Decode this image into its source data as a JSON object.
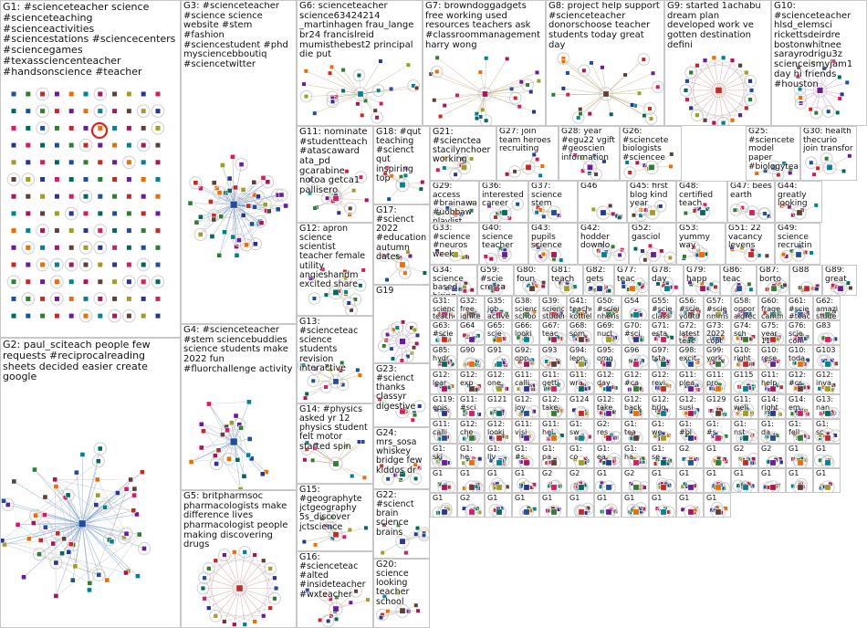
{
  "groups": [
    {
      "id": "G1",
      "label": "G1: #scienceteacher science #scienceteaching #scienceactivities #sciencestations #sciencecenters #sciencegames #texassciencenteacher #handsonscience #teacher"
    },
    {
      "id": "G2",
      "label": "G2: paul_sciteach people few requests #reciprocalreading sheets decided easier create google"
    },
    {
      "id": "G3",
      "label": "G3: #scienceteacher #science science website #stem #fashion #sciencestudent #phd mysciencebboutiq #sciencetwitter"
    },
    {
      "id": "G4",
      "label": "G4: #scienceteacher #stem sciencebuddies science students make 2022 fun #fluorchallenge activity"
    },
    {
      "id": "G5",
      "label": "G5: britpharmsoc pharmacologists make difference lives pharmacologist people making discovering drugs"
    },
    {
      "id": "G6",
      "label": "G6: scienceteacher science63424214 _martinhagen frau_lange br24 francislreid mumisthebest2 principal die put"
    },
    {
      "id": "G7",
      "label": "G7: browndoggadgets free working used resources teachers ask #classroommanagement harry wong"
    },
    {
      "id": "G8",
      "label": "G8: project help support #scienceteacher donorschoose teacher students today great day"
    },
    {
      "id": "G9",
      "label": "G9: started 1achabu dream plan developed work ve gotten destination defini"
    },
    {
      "id": "G10",
      "label": "G10: #scienceteacher hlsd_elemsci rickettsdeirdre bostonwhitnee sarayrodrigu3z scienceismyjam1 day hi friends #houston"
    },
    {
      "id": "G11",
      "label": "G11: nominate #studentteach #atascaward ata_pd gcarabine notoa getca1 pallisero"
    },
    {
      "id": "G12",
      "label": "G12: apron science scientist teacher female utility angieshandm excited share"
    },
    {
      "id": "G13",
      "label": "G13: #scienceteac science students revision interactive"
    },
    {
      "id": "G14",
      "label": "G14: #physics asked yr 12 physics student felt motor started spin"
    },
    {
      "id": "G15",
      "label": "G15: #geographyte jctgeography 5s_discover jctscience"
    },
    {
      "id": "G16",
      "label": "G16: #scienceteac #alted #insideteacher #wxteacher"
    },
    {
      "id": "G17",
      "label": "G17: #scienct 2022 #education autumn dates"
    },
    {
      "id": "G18",
      "label": "G18: #qut teaching #scienct qut inspiring top"
    },
    {
      "id": "G19",
      "label": "G19"
    },
    {
      "id": "G20",
      "label": "G20: science looking teacher school"
    },
    {
      "id": "G21",
      "label": "G21: #scienctea stacilynchoer working"
    },
    {
      "id": "G22",
      "label": "G22: #scienct brain science brains"
    },
    {
      "id": "G23",
      "label": "G23: #scienct thanks classyr digestive"
    },
    {
      "id": "G24",
      "label": "G24: mrs_sosa whiskey bridge few kiddos dr"
    },
    {
      "id": "G25",
      "label": "G25: #sciencete model paper #biologytea"
    },
    {
      "id": "G26",
      "label": "G26: #sciencete biologists #sciencee"
    },
    {
      "id": "G27",
      "label": "G27: join team heroes recruiting"
    },
    {
      "id": "G28",
      "label": "G28: year #egu22 vgift #geoscien information"
    },
    {
      "id": "G29",
      "label": "G29: access #brainawar #uobbaw playlist"
    },
    {
      "id": "G30",
      "label": "G30: health thecurio join transfor"
    },
    {
      "id": "G31",
      "label": "G31: science teacher burns"
    },
    {
      "id": "G32",
      "label": "G32: free ignite teaching data"
    },
    {
      "id": "G33",
      "label": "G33: #science #neuros week"
    },
    {
      "id": "G34",
      "label": "G34: science based hiring"
    },
    {
      "id": "G35",
      "label": "G35: job active teaching credent"
    },
    {
      "id": "G36",
      "label": "G36: interested career"
    },
    {
      "id": "G37",
      "label": "G37: science stem"
    },
    {
      "id": "G38",
      "label": "G38: science school"
    },
    {
      "id": "G39",
      "label": "G39: science students"
    },
    {
      "id": "G40",
      "label": "G40: science teacher"
    },
    {
      "id": "G41",
      "label": "G41: teachers kottieb"
    },
    {
      "id": "G42",
      "label": "G42: hodder downlo"
    },
    {
      "id": "G43",
      "label": "G43: pupils science"
    },
    {
      "id": "G44",
      "label": "G44: greatly looking"
    },
    {
      "id": "G45",
      "label": "G45: first blog kind year"
    },
    {
      "id": "G46",
      "label": "G46"
    },
    {
      "id": "G47",
      "label": "G47: bees earth"
    },
    {
      "id": "G48",
      "label": "G48: certified teach"
    },
    {
      "id": "G49",
      "label": "G49: science recruitin"
    },
    {
      "id": "G50",
      "label": "G50: #scien nheris"
    },
    {
      "id": "G51",
      "label": "G51: 22 vacancy levens"
    },
    {
      "id": "G52",
      "label": "G52: gasciol"
    },
    {
      "id": "G53",
      "label": "G53: yummy way"
    },
    {
      "id": "G54",
      "label": "G54"
    },
    {
      "id": "G55",
      "label": "G55: #scie class"
    },
    {
      "id": "G56",
      "label": "G56: #scie youtu"
    },
    {
      "id": "G57",
      "label": "G57: #scie nmms"
    },
    {
      "id": "G58",
      "label": "G58: oppor aigrec"
    },
    {
      "id": "G59",
      "label": "G59: #scie cresta"
    },
    {
      "id": "G60",
      "label": "G60: frage camm"
    },
    {
      "id": "G61",
      "label": "G61: #scie #teac"
    },
    {
      "id": "G62",
      "label": "G62: amazi stude"
    },
    {
      "id": "G63",
      "label": "G63: #scie"
    },
    {
      "id": "G64",
      "label": "G64"
    },
    {
      "id": "G65",
      "label": "G65: scie"
    },
    {
      "id": "G66",
      "label": "G66: looki"
    },
    {
      "id": "G67",
      "label": "G67: teac"
    },
    {
      "id": "G68",
      "label": "G68: som"
    },
    {
      "id": "G69",
      "label": "G69: nucl"
    },
    {
      "id": "G70",
      "label": "G70: #sci"
    },
    {
      "id": "G71",
      "label": "G71: esta"
    },
    {
      "id": "G72",
      "label": "G72: latest teac"
    },
    {
      "id": "G73",
      "label": "G73: 2022 copt"
    },
    {
      "id": "G74",
      "label": "G74: sch"
    },
    {
      "id": "G75",
      "label": "G75: year 11"
    },
    {
      "id": "G76",
      "label": "G76: scie com"
    },
    {
      "id": "G77",
      "label": "G77: teac"
    },
    {
      "id": "G78",
      "label": "G78: day"
    },
    {
      "id": "G79",
      "label": "G79: happ"
    },
    {
      "id": "G80",
      "label": "G80: foun"
    },
    {
      "id": "G81",
      "label": "G81: teach"
    },
    {
      "id": "G82",
      "label": "G82: gets"
    },
    {
      "id": "G83",
      "label": "G83"
    },
    {
      "id": "G85",
      "label": "G85: hydr"
    },
    {
      "id": "G86",
      "label": "G86: teac"
    },
    {
      "id": "G87",
      "label": "G87: borto"
    },
    {
      "id": "G88",
      "label": "G88"
    },
    {
      "id": "G89",
      "label": "G89: great"
    },
    {
      "id": "G90",
      "label": "G90"
    },
    {
      "id": "G91",
      "label": "G91"
    },
    {
      "id": "G92",
      "label": "G92: opp"
    },
    {
      "id": "G93",
      "label": "G93"
    },
    {
      "id": "G94",
      "label": "G94: leon"
    },
    {
      "id": "G95",
      "label": "G95: omg"
    },
    {
      "id": "G96",
      "label": "G96"
    },
    {
      "id": "G97",
      "label": "G97: tsta"
    },
    {
      "id": "G98",
      "label": "G98: excit"
    },
    {
      "id": "G99",
      "label": "G99: york"
    },
    {
      "id": "G100",
      "label": "G10: right"
    },
    {
      "id": "G101",
      "label": "G10: rese"
    },
    {
      "id": "G102",
      "label": "G10: toda"
    },
    {
      "id": "G103",
      "label": "G103"
    },
    {
      "id": "G104",
      "label": "G12: lear"
    },
    {
      "id": "G105",
      "label": "G12: exp"
    },
    {
      "id": "G106",
      "label": "G12: one"
    },
    {
      "id": "G107",
      "label": "G11: calli"
    },
    {
      "id": "G108",
      "label": "G11: getti"
    },
    {
      "id": "G109",
      "label": "G11: wra"
    },
    {
      "id": "G110",
      "label": "G12: day"
    },
    {
      "id": "G111",
      "label": "G12: #ca"
    },
    {
      "id": "G112",
      "label": "G12: revi"
    },
    {
      "id": "G113",
      "label": "G11: plea"
    },
    {
      "id": "G114",
      "label": "G11: pro"
    },
    {
      "id": "G115",
      "label": "G115"
    },
    {
      "id": "G116",
      "label": "G11: help"
    },
    {
      "id": "G117",
      "label": "G12: #cs"
    },
    {
      "id": "G118",
      "label": "G12: inva"
    },
    {
      "id": "G119",
      "label": "G119: epis"
    },
    {
      "id": "G120",
      "label": "G11: #sci"
    },
    {
      "id": "G121",
      "label": "G121"
    },
    {
      "id": "G122",
      "label": "G12: joy"
    },
    {
      "id": "G123",
      "label": "G12: take"
    },
    {
      "id": "G124",
      "label": "G124"
    },
    {
      "id": "G125",
      "label": "G12: take"
    },
    {
      "id": "G126",
      "label": "G12: back"
    },
    {
      "id": "G127",
      "label": "G12: brig"
    },
    {
      "id": "G128",
      "label": "G12: susi"
    },
    {
      "id": "G129",
      "label": "G129"
    },
    {
      "id": "G130",
      "label": "G11: well"
    },
    {
      "id": "G131",
      "label": "G14: right"
    },
    {
      "id": "G132",
      "label": "G14: em"
    },
    {
      "id": "G133",
      "label": "G13: nan"
    },
    {
      "id": "G134",
      "label": "G11: calli"
    },
    {
      "id": "G135",
      "label": "G12: che"
    },
    {
      "id": "G136",
      "label": "G12: looki"
    },
    {
      "id": "G137",
      "label": "G11: visi"
    },
    {
      "id": "G138",
      "label": "G11: hel"
    },
    {
      "id": "G139",
      "label": "G1: sw"
    },
    {
      "id": "G140",
      "label": "G2: res"
    },
    {
      "id": "G141",
      "label": "G1: tea"
    },
    {
      "id": "G142",
      "label": "G1: we"
    },
    {
      "id": "G143",
      "label": "G1: #bl"
    },
    {
      "id": "G144",
      "label": "G1: #s"
    },
    {
      "id": "G145",
      "label": "G1: nst"
    },
    {
      "id": "G146",
      "label": "G1: da"
    },
    {
      "id": "G147",
      "label": "G1: fell"
    },
    {
      "id": "G148",
      "label": "G1: sc"
    },
    {
      "id": "G149",
      "label": "G1: ski"
    },
    {
      "id": "G150",
      "label": "G1: he"
    },
    {
      "id": "G151",
      "label": "G1: liv"
    },
    {
      "id": "G152",
      "label": "G1: #s"
    },
    {
      "id": "G153",
      "label": "G1: pa"
    },
    {
      "id": "G154",
      "label": "G1: co"
    },
    {
      "id": "G155",
      "label": "G1: ea"
    },
    {
      "id": "G156",
      "label": "G1: ha"
    },
    {
      "id": "G157",
      "label": "G1: se"
    },
    {
      "id": "G158",
      "label": "G2"
    },
    {
      "id": "G159",
      "label": "G1"
    },
    {
      "id": "G160",
      "label": "G2"
    },
    {
      "id": "G161",
      "label": "G2"
    },
    {
      "id": "G162",
      "label": "G1"
    },
    {
      "id": "G163",
      "label": "G1"
    },
    {
      "id": "G164",
      "label": "G1"
    },
    {
      "id": "G165",
      "label": "G1"
    },
    {
      "id": "G166",
      "label": "G1"
    },
    {
      "id": "G167",
      "label": "G1"
    },
    {
      "id": "G168",
      "label": "G2"
    },
    {
      "id": "G169",
      "label": "G2"
    },
    {
      "id": "G170",
      "label": "G1"
    },
    {
      "id": "G171",
      "label": "G2"
    },
    {
      "id": "G172",
      "label": "G1"
    },
    {
      "id": "G173",
      "label": "G1"
    },
    {
      "id": "G174",
      "label": "G1"
    },
    {
      "id": "G175",
      "label": "G1"
    },
    {
      "id": "G176",
      "label": "G1"
    },
    {
      "id": "G177",
      "label": "G1"
    },
    {
      "id": "G178",
      "label": "G1"
    },
    {
      "id": "G179",
      "label": "G1"
    },
    {
      "id": "G180",
      "label": "G2"
    },
    {
      "id": "G181",
      "label": "G1"
    },
    {
      "id": "G182",
      "label": "G1"
    },
    {
      "id": "G183",
      "label": "G1"
    },
    {
      "id": "G184",
      "label": "G1"
    },
    {
      "id": "G185",
      "label": "G1"
    },
    {
      "id": "G186",
      "label": "G1"
    },
    {
      "id": "G187",
      "label": "G1"
    },
    {
      "id": "G188",
      "label": "G1"
    },
    {
      "id": "G189",
      "label": "G1"
    }
  ],
  "colors": {
    "border": "#c8c8c8",
    "edge": "#8a8a8a",
    "node_palette": [
      "#1f4e9c",
      "#2e7d32",
      "#c62828",
      "#6a1b9a",
      "#ef6c00",
      "#00838f",
      "#ad1457",
      "#5d4037",
      "#9e9d24",
      "#283593",
      "#d81b60",
      "#00695c"
    ],
    "halo": "#d0d0d0",
    "highlight": "#e02020"
  }
}
